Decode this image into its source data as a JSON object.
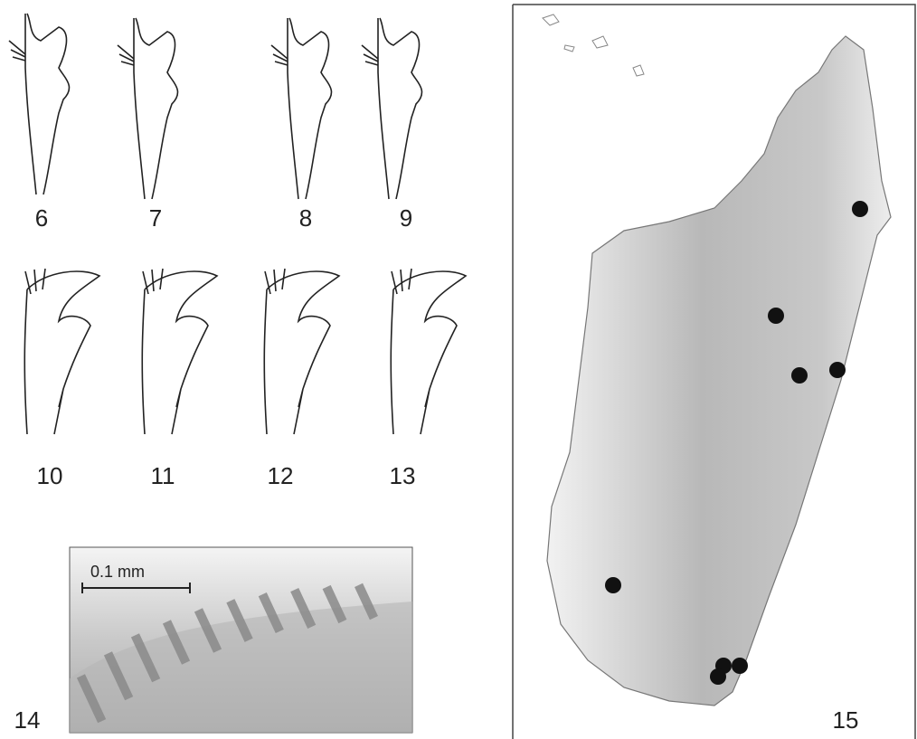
{
  "figure_labels": [
    "6",
    "7",
    "8",
    "9",
    "10",
    "11",
    "12",
    "13",
    "14",
    "15"
  ],
  "scale_bar": "0.1 mm"
}
